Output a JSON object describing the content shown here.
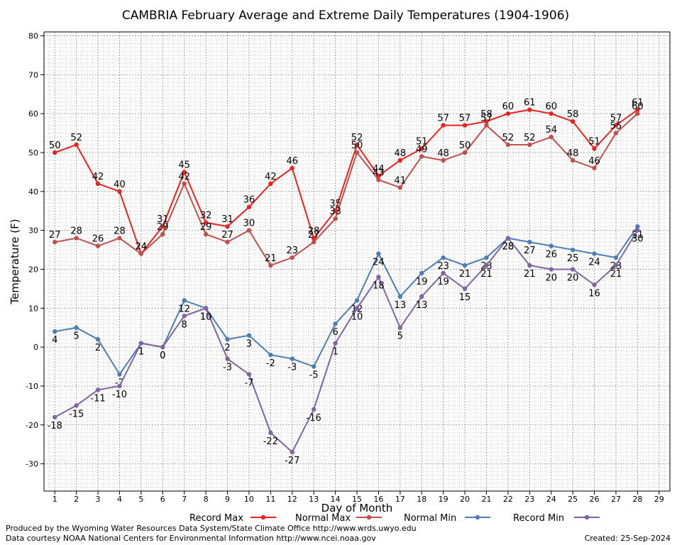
{
  "chart_data": {
    "type": "line",
    "title": "CAMBRIA February Average and Extreme Daily Temperatures (1904-1906)",
    "xlabel": "Day of Month",
    "ylabel": "Temperature (F)",
    "xlim": [
      0.5,
      29.5
    ],
    "ylim": [
      -37,
      81
    ],
    "x_ticks": [
      1,
      2,
      3,
      4,
      5,
      6,
      7,
      8,
      9,
      10,
      11,
      12,
      13,
      14,
      15,
      16,
      17,
      18,
      19,
      20,
      21,
      22,
      23,
      24,
      25,
      26,
      27,
      28,
      29
    ],
    "y_ticks": [
      -30,
      -20,
      -10,
      0,
      10,
      20,
      30,
      40,
      50,
      60,
      70,
      80
    ],
    "grid": true,
    "legend_position": "bottom",
    "x": [
      1,
      2,
      3,
      4,
      5,
      6,
      7,
      8,
      9,
      10,
      11,
      12,
      13,
      14,
      15,
      16,
      17,
      18,
      19,
      20,
      21,
      22,
      23,
      24,
      25,
      26,
      27,
      28
    ],
    "series": [
      {
        "name": "Record Max",
        "color": "#e8231e",
        "label_side": "above",
        "values": [
          50,
          52,
          42,
          40,
          24,
          31,
          45,
          32,
          31,
          36,
          42,
          46,
          28,
          35,
          52,
          44,
          48,
          51,
          57,
          57,
          58,
          60,
          61,
          60,
          58,
          51,
          57,
          61
        ]
      },
      {
        "name": "Normal Max",
        "color": "#c0504d",
        "label_side": "above",
        "values": [
          27,
          28,
          26,
          28,
          24,
          29,
          42,
          29,
          27,
          30,
          21,
          23,
          27,
          33,
          50,
          43,
          41,
          49,
          48,
          50,
          57,
          52,
          52,
          54,
          48,
          46,
          55,
          60
        ]
      },
      {
        "name": "Normal Min",
        "color": "#4a7eb5",
        "label_side": "below",
        "values": [
          4,
          5,
          2,
          -7,
          1,
          0,
          12,
          10,
          2,
          3,
          -2,
          -3,
          -5,
          6,
          12,
          24,
          13,
          19,
          23,
          21,
          23,
          28,
          27,
          26,
          25,
          24,
          23,
          31
        ]
      },
      {
        "name": "Record Min",
        "color": "#8064a2",
        "label_side": "below",
        "values": [
          -18,
          -15,
          -11,
          -10,
          1,
          0,
          8,
          10,
          -3,
          -7,
          -22,
          -27,
          -16,
          1,
          10,
          18,
          5,
          13,
          19,
          15,
          21,
          28,
          21,
          20,
          20,
          16,
          21,
          30
        ]
      }
    ]
  },
  "footer": {
    "credit_line1": "Produced by the Wyoming Water Resources Data System/State Climate Office http://www.wrds.uwyo.edu",
    "credit_line2": "Data courtesy NOAA National Centers for Environmental Information http://www.ncei.noaa.gov",
    "created": "Created:  25-Sep-2024"
  }
}
